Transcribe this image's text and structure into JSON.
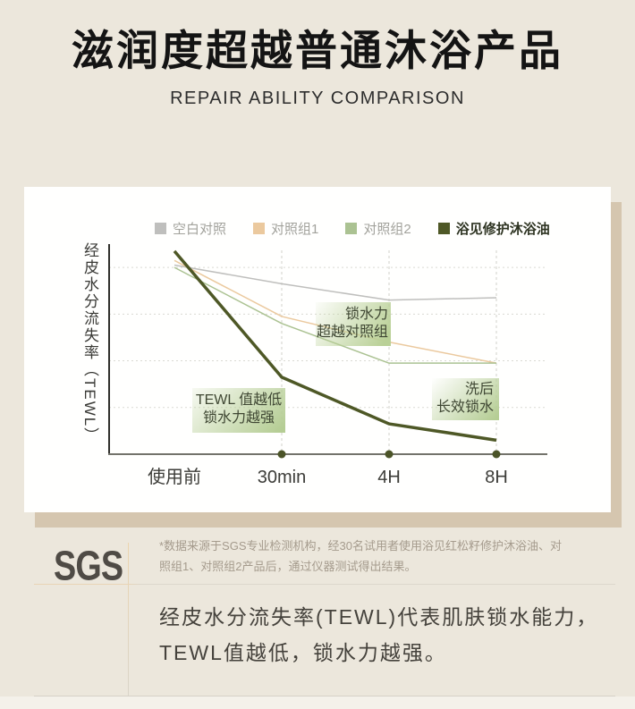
{
  "page": {
    "title": "滋润度超越普通沐浴产品",
    "subtitle": "REPAIR ABILITY COMPARISON"
  },
  "chart_data": {
    "type": "line",
    "title": "",
    "xlabel": "",
    "ylabel": "经皮水分流失率（TEWL）",
    "categories": [
      "使用前",
      "30min",
      "4H",
      "8H"
    ],
    "ylim": [
      0,
      9
    ],
    "grid_values": [
      2,
      4,
      6,
      8
    ],
    "grid": "dotted-horizontal, dashed vertical guides at 30min/4H/8H",
    "legend_position": "top",
    "axis_note": "no numeric y ticks shown; values are relative TEWL units read from gridlines",
    "series": [
      {
        "name": "空白对照",
        "color": "#bfbfbd",
        "emphasis": false,
        "values": [
          8.1,
          7.3,
          6.6,
          6.7
        ]
      },
      {
        "name": "对照组1",
        "color": "#ebc99e",
        "emphasis": false,
        "values": [
          8.3,
          5.9,
          4.8,
          3.9
        ]
      },
      {
        "name": "对照组2",
        "color": "#abc292",
        "emphasis": false,
        "values": [
          8.0,
          5.6,
          3.9,
          3.9
        ]
      },
      {
        "name": "浴见修护沐浴油",
        "color": "#4e5826",
        "emphasis": true,
        "values": [
          8.7,
          3.3,
          1.3,
          0.6
        ]
      }
    ],
    "annotations": [
      {
        "line1": "锁水力",
        "line2": "超越对照组"
      },
      {
        "line1": "TEWL 值越低",
        "line2": "锁水力越强"
      },
      {
        "line1": "洗后",
        "line2": "长效锁水"
      }
    ]
  },
  "sgs": {
    "logo": "SGS",
    "footnote_lines": [
      "*数据来源于SGS专业检测机构，经30名试用者使用浴见红松籽修护沐浴油、对",
      "照组1、对照组2产品后，通过仪器测试得出结果。"
    ],
    "description_lines": [
      "经皮水分流失率(TEWL)代表肌肤锁水能力，",
      "TEWL值越低，锁水力越强。"
    ]
  },
  "colors": {
    "background": "#ece7dc",
    "card": "#fffffe",
    "card_shadow": "#d5c6af",
    "accent_olive": "#4e5826",
    "annotation_green": "#b7ce96",
    "axis_dark": "#30302c",
    "axis_gray": "#73736b",
    "muted_text": "#a2a29c"
  }
}
